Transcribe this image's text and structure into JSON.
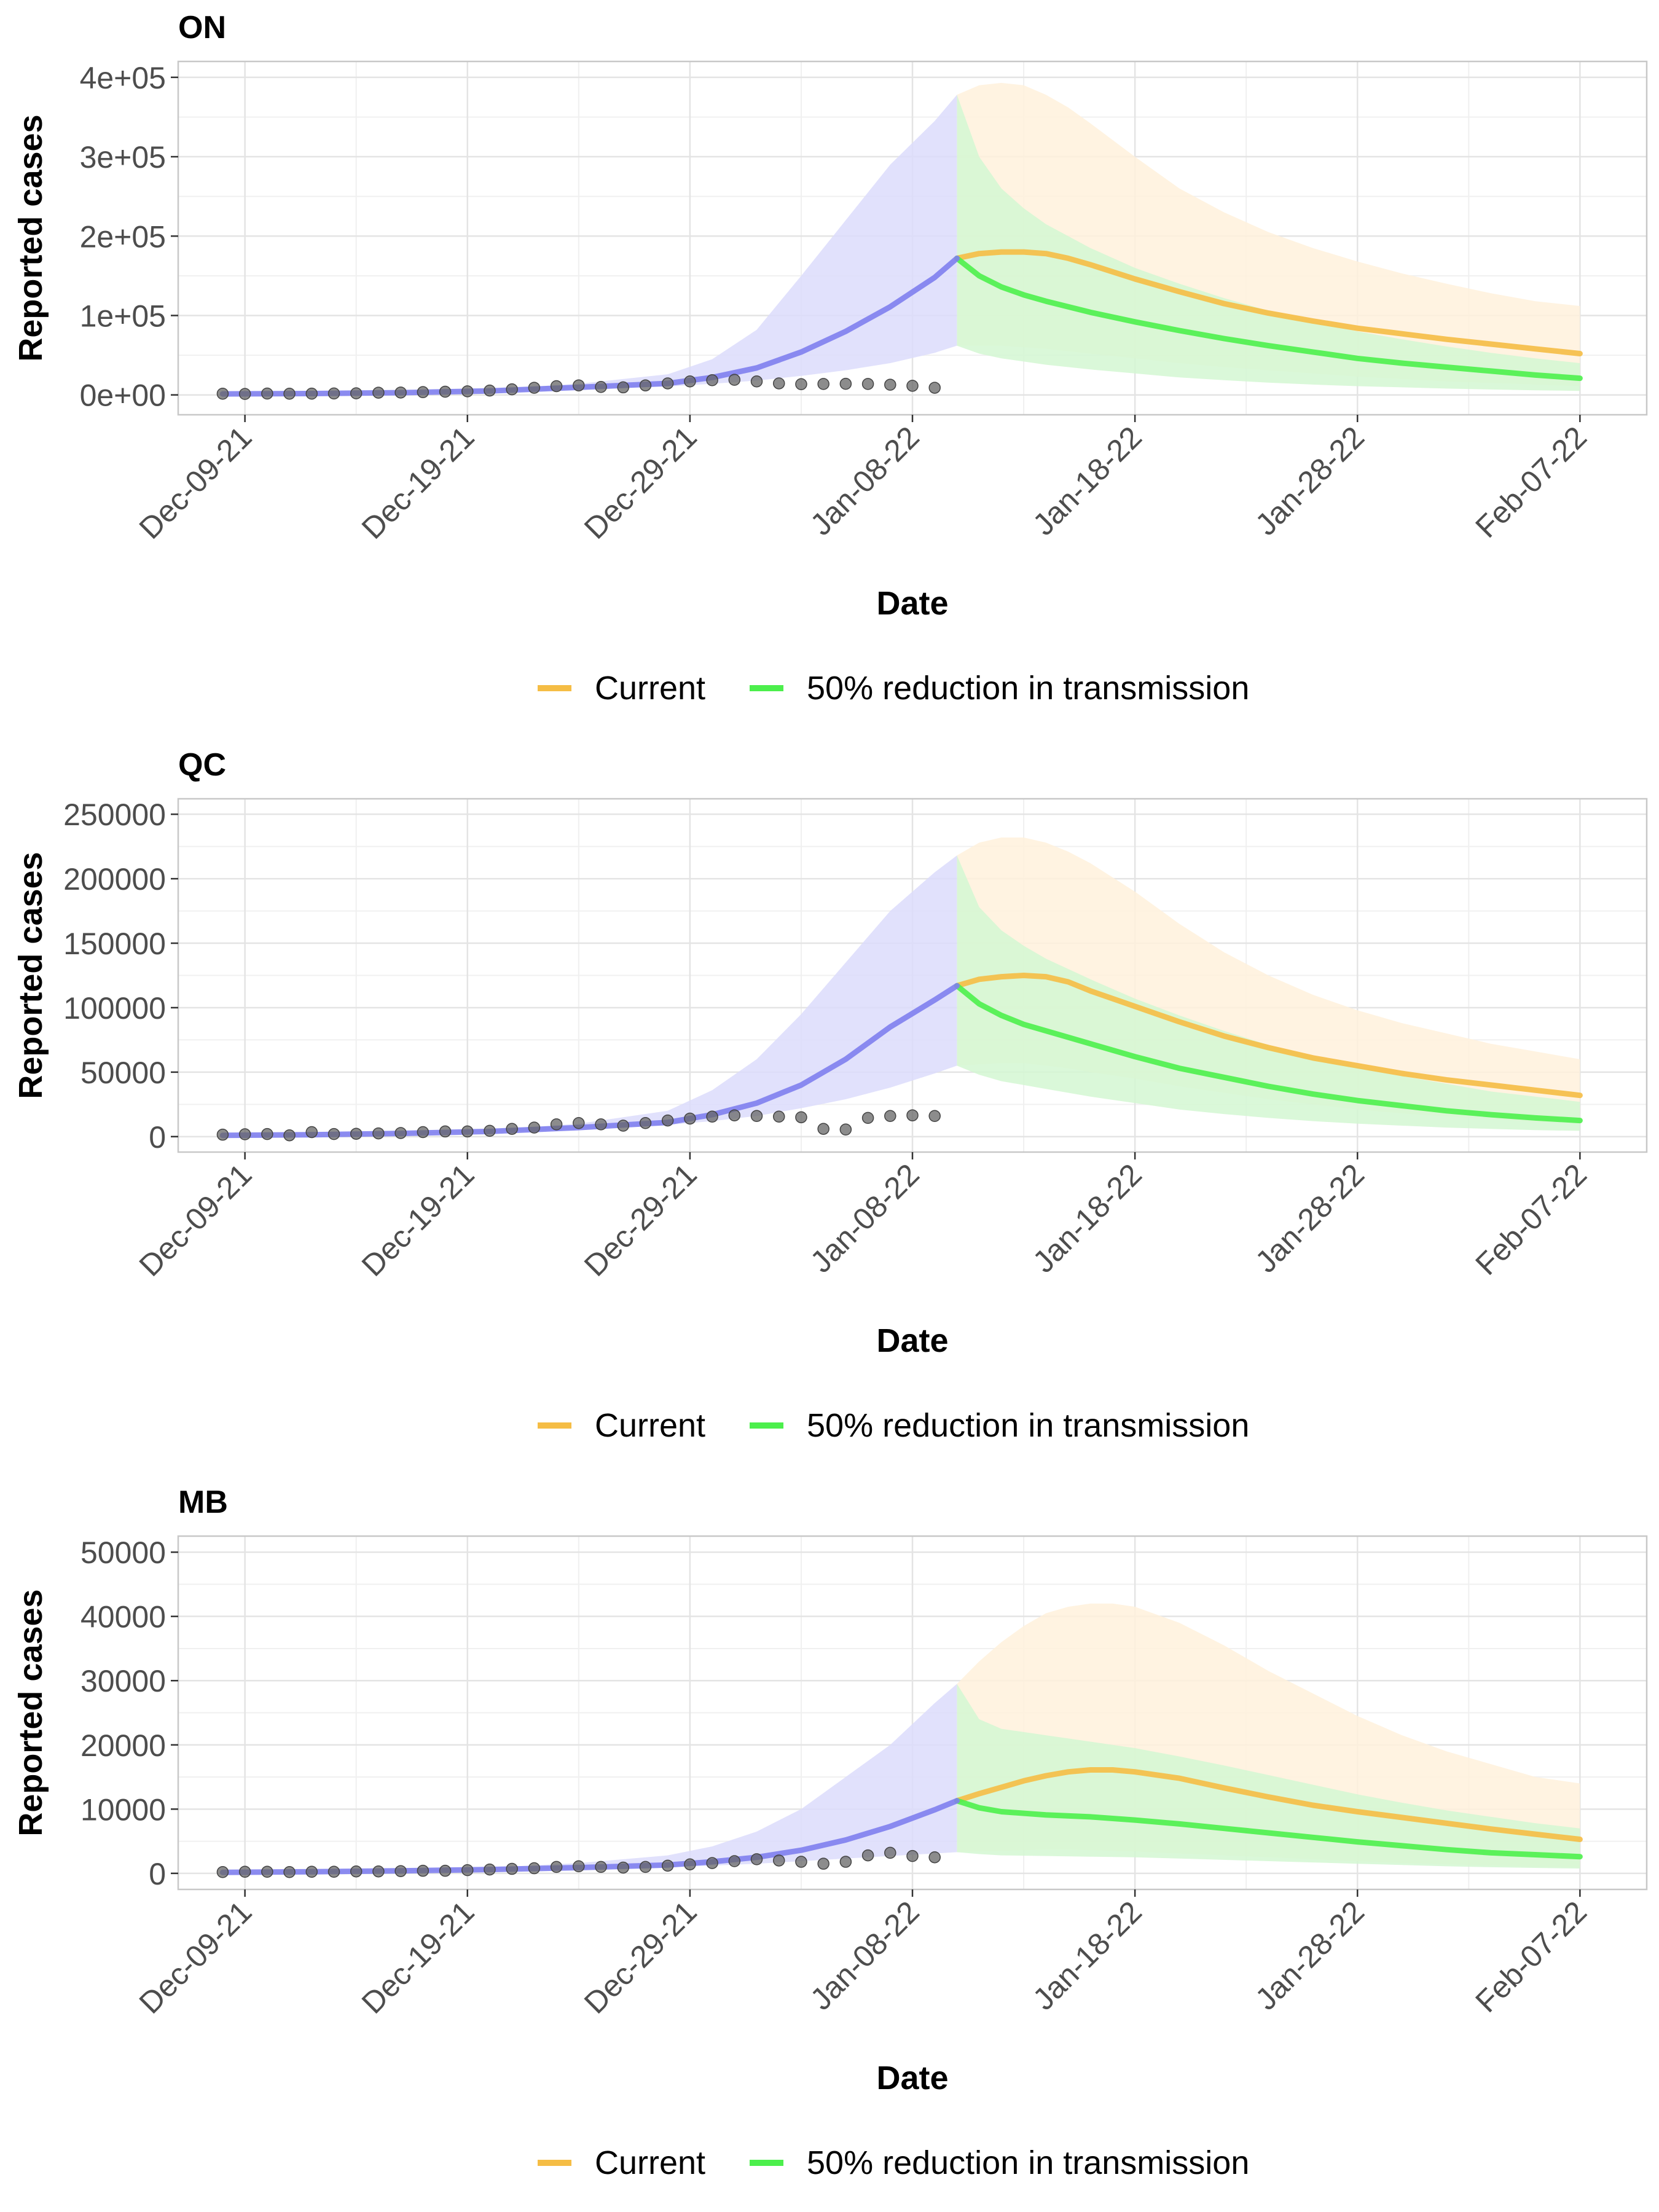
{
  "chart_data": [
    {
      "type": "line",
      "title": "ON",
      "xlabel": "Date",
      "ylabel": "Reported cases",
      "x_tick_labels": [
        "Dec-09-21",
        "Dec-19-21",
        "Dec-29-21",
        "Jan-08-22",
        "Jan-18-22",
        "Jan-28-22",
        "Feb-07-22"
      ],
      "y_tick_labels": [
        "0e+00",
        "1e+05",
        "2e+05",
        "3e+05",
        "4e+05"
      ],
      "y_ticks": [
        0,
        100000,
        200000,
        300000,
        400000
      ],
      "ylim": [
        -25000,
        420000
      ],
      "xlim": [
        "2021-12-06",
        "2022-02-10"
      ],
      "grid": true,
      "legend": {
        "position": "bottom",
        "entries": [
          "Current",
          "50% reduction in transmission"
        ]
      },
      "colors": {
        "fit": "#8080ee",
        "fit_band": "#dcdcfb",
        "current": "#f5bd45",
        "current_band": "#fff1dc",
        "reduction": "#4cef4c",
        "reduction_band": "#d4f7d2",
        "observed": "#666666"
      },
      "observed": {
        "x": [
          "2021-12-08",
          "2021-12-09",
          "2021-12-10",
          "2021-12-11",
          "2021-12-12",
          "2021-12-13",
          "2021-12-14",
          "2021-12-15",
          "2021-12-16",
          "2021-12-17",
          "2021-12-18",
          "2021-12-19",
          "2021-12-20",
          "2021-12-21",
          "2021-12-22",
          "2021-12-23",
          "2021-12-24",
          "2021-12-25",
          "2021-12-26",
          "2021-12-27",
          "2021-12-28",
          "2021-12-29",
          "2021-12-30",
          "2021-12-31",
          "2022-01-01",
          "2022-01-02",
          "2022-01-03",
          "2022-01-04",
          "2022-01-05",
          "2022-01-06",
          "2022-01-07",
          "2022-01-08",
          "2022-01-09"
        ],
        "y": [
          1500,
          1200,
          1700,
          1500,
          1600,
          1800,
          2000,
          2800,
          3000,
          3500,
          4000,
          4500,
          5500,
          7000,
          9000,
          11000,
          12000,
          10000,
          9500,
          12000,
          14500,
          17000,
          18500,
          19000,
          17000,
          14500,
          13500,
          13800,
          14000,
          13800,
          12800,
          11500,
          9000
        ]
      },
      "fit": {
        "x": [
          "2021-12-08",
          "2021-12-12",
          "2021-12-16",
          "2021-12-20",
          "2021-12-24",
          "2021-12-28",
          "2021-12-30",
          "2022-01-01",
          "2022-01-03",
          "2022-01-05",
          "2022-01-07",
          "2022-01-09",
          "2022-01-10"
        ],
        "y": [
          1200,
          1700,
          2800,
          5000,
          9500,
          14500,
          22000,
          34000,
          54000,
          80000,
          111000,
          148000,
          172000
        ],
        "lower": [
          1100,
          1500,
          2400,
          4200,
          7500,
          10500,
          14000,
          18000,
          24000,
          31000,
          40000,
          53000,
          62000
        ],
        "upper": [
          1400,
          2000,
          3500,
          7000,
          14000,
          26000,
          45000,
          82000,
          150000,
          220000,
          290000,
          345000,
          378000
        ]
      },
      "current": {
        "x": [
          "2022-01-10",
          "2022-01-11",
          "2022-01-12",
          "2022-01-13",
          "2022-01-14",
          "2022-01-15",
          "2022-01-16",
          "2022-01-18",
          "2022-01-20",
          "2022-01-22",
          "2022-01-24",
          "2022-01-26",
          "2022-01-28",
          "2022-01-30",
          "2022-02-01",
          "2022-02-03",
          "2022-02-05",
          "2022-02-07"
        ],
        "y": [
          172000,
          178000,
          180000,
          180000,
          178000,
          172000,
          164000,
          146000,
          130000,
          115000,
          103000,
          93000,
          84000,
          77000,
          70000,
          64000,
          58000,
          52000
        ],
        "lower": [
          62000,
          62000,
          62000,
          60000,
          58000,
          55000,
          52000,
          46000,
          40000,
          35000,
          31000,
          27000,
          23000,
          20000,
          17000,
          15000,
          13000,
          11000
        ],
        "upper": [
          378000,
          390000,
          393000,
          390000,
          378000,
          362000,
          342000,
          300000,
          260000,
          230000,
          205000,
          185000,
          168000,
          153000,
          140000,
          128000,
          118000,
          112000
        ]
      },
      "reduction": {
        "x": [
          "2022-01-10",
          "2022-01-11",
          "2022-01-12",
          "2022-01-13",
          "2022-01-14",
          "2022-01-16",
          "2022-01-18",
          "2022-01-20",
          "2022-01-22",
          "2022-01-24",
          "2022-01-26",
          "2022-01-28",
          "2022-01-30",
          "2022-02-01",
          "2022-02-03",
          "2022-02-05",
          "2022-02-07"
        ],
        "y": [
          172000,
          150000,
          136000,
          126000,
          118000,
          104000,
          92000,
          81000,
          71000,
          62000,
          54000,
          46000,
          40000,
          35000,
          30000,
          25000,
          21000
        ],
        "lower": [
          62000,
          52000,
          46000,
          42000,
          38000,
          32000,
          27000,
          22000,
          18500,
          15500,
          13000,
          11000,
          9500,
          8000,
          6800,
          5800,
          5000
        ],
        "upper": [
          378000,
          300000,
          260000,
          235000,
          215000,
          185000,
          160000,
          140000,
          122000,
          106000,
          92000,
          80000,
          70000,
          61000,
          53000,
          46000,
          40000
        ]
      }
    },
    {
      "type": "line",
      "title": "QC",
      "xlabel": "Date",
      "ylabel": "Reported cases",
      "x_tick_labels": [
        "Dec-09-21",
        "Dec-19-21",
        "Dec-29-21",
        "Jan-08-22",
        "Jan-18-22",
        "Jan-28-22",
        "Feb-07-22"
      ],
      "y_tick_labels": [
        "0",
        "50000",
        "100000",
        "150000",
        "200000",
        "250000"
      ],
      "y_ticks": [
        0,
        50000,
        100000,
        150000,
        200000,
        250000
      ],
      "ylim": [
        -12000,
        262000
      ],
      "xlim": [
        "2021-12-06",
        "2022-02-10"
      ],
      "grid": true,
      "legend": {
        "position": "bottom",
        "entries": [
          "Current",
          "50% reduction in transmission"
        ]
      },
      "colors": {
        "fit": "#8080ee",
        "fit_band": "#dcdcfb",
        "current": "#f5bd45",
        "current_band": "#fff1dc",
        "reduction": "#4cef4c",
        "reduction_band": "#d4f7d2",
        "observed": "#666666"
      },
      "observed": {
        "x": [
          "2021-12-08",
          "2021-12-09",
          "2021-12-10",
          "2021-12-11",
          "2021-12-12",
          "2021-12-13",
          "2021-12-14",
          "2021-12-15",
          "2021-12-16",
          "2021-12-17",
          "2021-12-18",
          "2021-12-19",
          "2021-12-20",
          "2021-12-21",
          "2021-12-22",
          "2021-12-23",
          "2021-12-24",
          "2021-12-25",
          "2021-12-26",
          "2021-12-27",
          "2021-12-28",
          "2021-12-29",
          "2021-12-30",
          "2021-12-31",
          "2022-01-01",
          "2022-01-02",
          "2022-01-03",
          "2022-01-04",
          "2022-01-05",
          "2022-01-06",
          "2022-01-07",
          "2022-01-08",
          "2022-01-09"
        ],
        "y": [
          1500,
          1800,
          2000,
          1000,
          3500,
          2000,
          2200,
          2500,
          2800,
          3500,
          4000,
          4000,
          4500,
          6000,
          7000,
          9500,
          10500,
          9500,
          8500,
          10500,
          12500,
          14000,
          15500,
          16500,
          16000,
          15500,
          15000,
          6000,
          5500,
          14500,
          16000,
          16500,
          16000
        ]
      },
      "fit": {
        "x": [
          "2021-12-08",
          "2021-12-12",
          "2021-12-16",
          "2021-12-20",
          "2021-12-24",
          "2021-12-28",
          "2021-12-30",
          "2022-01-01",
          "2022-01-03",
          "2022-01-05",
          "2022-01-07",
          "2022-01-09",
          "2022-01-10"
        ],
        "y": [
          1000,
          1500,
          2500,
          4000,
          7000,
          11000,
          17000,
          26000,
          40000,
          60000,
          85000,
          106000,
          117000
        ],
        "lower": [
          900,
          1300,
          2200,
          3500,
          6000,
          9000,
          12000,
          16000,
          22000,
          29000,
          38000,
          49000,
          55000
        ],
        "upper": [
          1200,
          1800,
          3000,
          5000,
          10000,
          20000,
          36000,
          60000,
          95000,
          135000,
          175000,
          205000,
          218000
        ]
      },
      "current": {
        "x": [
          "2022-01-10",
          "2022-01-11",
          "2022-01-12",
          "2022-01-13",
          "2022-01-14",
          "2022-01-15",
          "2022-01-16",
          "2022-01-18",
          "2022-01-20",
          "2022-01-22",
          "2022-01-24",
          "2022-01-26",
          "2022-01-28",
          "2022-01-30",
          "2022-02-01",
          "2022-02-03",
          "2022-02-05",
          "2022-02-07"
        ],
        "y": [
          117000,
          122000,
          124000,
          125000,
          124000,
          120000,
          113000,
          101000,
          89000,
          78000,
          69000,
          61000,
          55000,
          49000,
          44000,
          40000,
          36000,
          32000
        ],
        "lower": [
          55000,
          56000,
          57000,
          57000,
          55000,
          53000,
          50000,
          45000,
          39000,
          34000,
          29000,
          25000,
          21000,
          18000,
          15500,
          13500,
          11500,
          10000
        ],
        "upper": [
          218000,
          228000,
          232000,
          232000,
          228000,
          221000,
          212000,
          190000,
          165000,
          143000,
          125000,
          110000,
          98000,
          88000,
          80000,
          72000,
          66000,
          60000
        ]
      },
      "reduction": {
        "x": [
          "2022-01-10",
          "2022-01-11",
          "2022-01-12",
          "2022-01-13",
          "2022-01-14",
          "2022-01-16",
          "2022-01-18",
          "2022-01-20",
          "2022-01-22",
          "2022-01-24",
          "2022-01-26",
          "2022-01-28",
          "2022-01-30",
          "2022-02-01",
          "2022-02-03",
          "2022-02-05",
          "2022-02-07"
        ],
        "y": [
          117000,
          103000,
          94000,
          87000,
          82000,
          72000,
          62000,
          53000,
          46000,
          39000,
          33000,
          28000,
          24000,
          20000,
          17000,
          14500,
          12500
        ],
        "lower": [
          55000,
          48000,
          43000,
          40000,
          37000,
          31000,
          26000,
          21000,
          17500,
          14500,
          12000,
          10000,
          8500,
          7000,
          6000,
          5000,
          4500
        ],
        "upper": [
          218000,
          178000,
          160000,
          148000,
          138000,
          122000,
          107000,
          94000,
          82000,
          71000,
          62000,
          54000,
          47000,
          41000,
          35000,
          31000,
          27000
        ]
      }
    },
    {
      "type": "line",
      "title": "MB",
      "xlabel": "Date",
      "ylabel": "Reported cases",
      "x_tick_labels": [
        "Dec-09-21",
        "Dec-19-21",
        "Dec-29-21",
        "Jan-08-22",
        "Jan-18-22",
        "Jan-28-22",
        "Feb-07-22"
      ],
      "y_tick_labels": [
        "0",
        "10000",
        "20000",
        "30000",
        "40000",
        "50000"
      ],
      "y_ticks": [
        0,
        10000,
        20000,
        30000,
        40000,
        50000
      ],
      "ylim": [
        -2500,
        52500
      ],
      "xlim": [
        "2021-12-06",
        "2022-02-10"
      ],
      "grid": true,
      "legend": {
        "position": "bottom",
        "entries": [
          "Current",
          "50% reduction in transmission"
        ]
      },
      "colors": {
        "fit": "#8080ee",
        "fit_band": "#dcdcfb",
        "current": "#f5bd45",
        "current_band": "#fff1dc",
        "reduction": "#4cef4c",
        "reduction_band": "#d4f7d2",
        "observed": "#666666"
      },
      "observed": {
        "x": [
          "2021-12-08",
          "2021-12-09",
          "2021-12-10",
          "2021-12-11",
          "2021-12-12",
          "2021-12-13",
          "2021-12-14",
          "2021-12-15",
          "2021-12-16",
          "2021-12-17",
          "2021-12-18",
          "2021-12-19",
          "2021-12-20",
          "2021-12-21",
          "2021-12-22",
          "2021-12-23",
          "2021-12-24",
          "2021-12-25",
          "2021-12-26",
          "2021-12-27",
          "2021-12-28",
          "2021-12-29",
          "2021-12-30",
          "2021-12-31",
          "2022-01-01",
          "2022-01-02",
          "2022-01-03",
          "2022-01-04",
          "2022-01-05",
          "2022-01-06",
          "2022-01-07",
          "2022-01-08",
          "2022-01-09"
        ],
        "y": [
          200,
          250,
          250,
          200,
          250,
          250,
          300,
          300,
          350,
          400,
          400,
          500,
          600,
          700,
          800,
          1000,
          1100,
          1000,
          900,
          1000,
          1200,
          1400,
          1600,
          1900,
          2200,
          2000,
          1800,
          1500,
          1800,
          2800,
          3200,
          2700,
          2500
        ]
      },
      "fit": {
        "x": [
          "2021-12-08",
          "2021-12-12",
          "2021-12-16",
          "2021-12-20",
          "2021-12-24",
          "2021-12-28",
          "2021-12-30",
          "2022-01-01",
          "2022-01-03",
          "2022-01-05",
          "2022-01-07",
          "2022-01-09",
          "2022-01-10"
        ],
        "y": [
          150,
          250,
          400,
          600,
          900,
          1300,
          1800,
          2500,
          3600,
          5200,
          7300,
          9900,
          11300
        ],
        "lower": [
          120,
          200,
          320,
          480,
          700,
          950,
          1200,
          1500,
          1900,
          2300,
          2700,
          3100,
          3300
        ],
        "upper": [
          200,
          320,
          550,
          900,
          1600,
          2800,
          4200,
          6500,
          10000,
          15000,
          20000,
          26500,
          29500
        ]
      },
      "current": {
        "x": [
          "2022-01-10",
          "2022-01-11",
          "2022-01-12",
          "2022-01-13",
          "2022-01-14",
          "2022-01-15",
          "2022-01-16",
          "2022-01-17",
          "2022-01-18",
          "2022-01-20",
          "2022-01-22",
          "2022-01-24",
          "2022-01-26",
          "2022-01-28",
          "2022-01-30",
          "2022-02-01",
          "2022-02-03",
          "2022-02-05",
          "2022-02-07"
        ],
        "y": [
          11300,
          12400,
          13400,
          14400,
          15200,
          15800,
          16100,
          16100,
          15800,
          14800,
          13300,
          11900,
          10600,
          9600,
          8700,
          7800,
          6900,
          6100,
          5300
        ],
        "lower": [
          3300,
          3400,
          3500,
          3600,
          3700,
          3700,
          3600,
          3500,
          3400,
          3100,
          2800,
          2500,
          2200,
          1900,
          1600,
          1400,
          1200,
          1000,
          900
        ],
        "upper": [
          29500,
          33000,
          36000,
          38500,
          40500,
          41500,
          42000,
          42000,
          41500,
          39000,
          35500,
          31500,
          28000,
          24500,
          21500,
          19000,
          17000,
          15000,
          14000
        ]
      },
      "reduction": {
        "x": [
          "2022-01-10",
          "2022-01-11",
          "2022-01-12",
          "2022-01-14",
          "2022-01-16",
          "2022-01-18",
          "2022-01-20",
          "2022-01-22",
          "2022-01-24",
          "2022-01-26",
          "2022-01-28",
          "2022-01-30",
          "2022-02-01",
          "2022-02-03",
          "2022-02-05",
          "2022-02-07"
        ],
        "y": [
          11300,
          10200,
          9600,
          9100,
          8800,
          8300,
          7700,
          7000,
          6300,
          5600,
          4900,
          4300,
          3700,
          3200,
          2900,
          2600
        ],
        "lower": [
          3300,
          3000,
          2800,
          2700,
          2600,
          2500,
          2300,
          2100,
          1900,
          1700,
          1500,
          1300,
          1100,
          950,
          850,
          750
        ],
        "upper": [
          29500,
          24000,
          22500,
          21500,
          20500,
          19500,
          18200,
          16800,
          15300,
          13800,
          12300,
          11000,
          9800,
          8800,
          7800,
          7000
        ]
      }
    }
  ]
}
